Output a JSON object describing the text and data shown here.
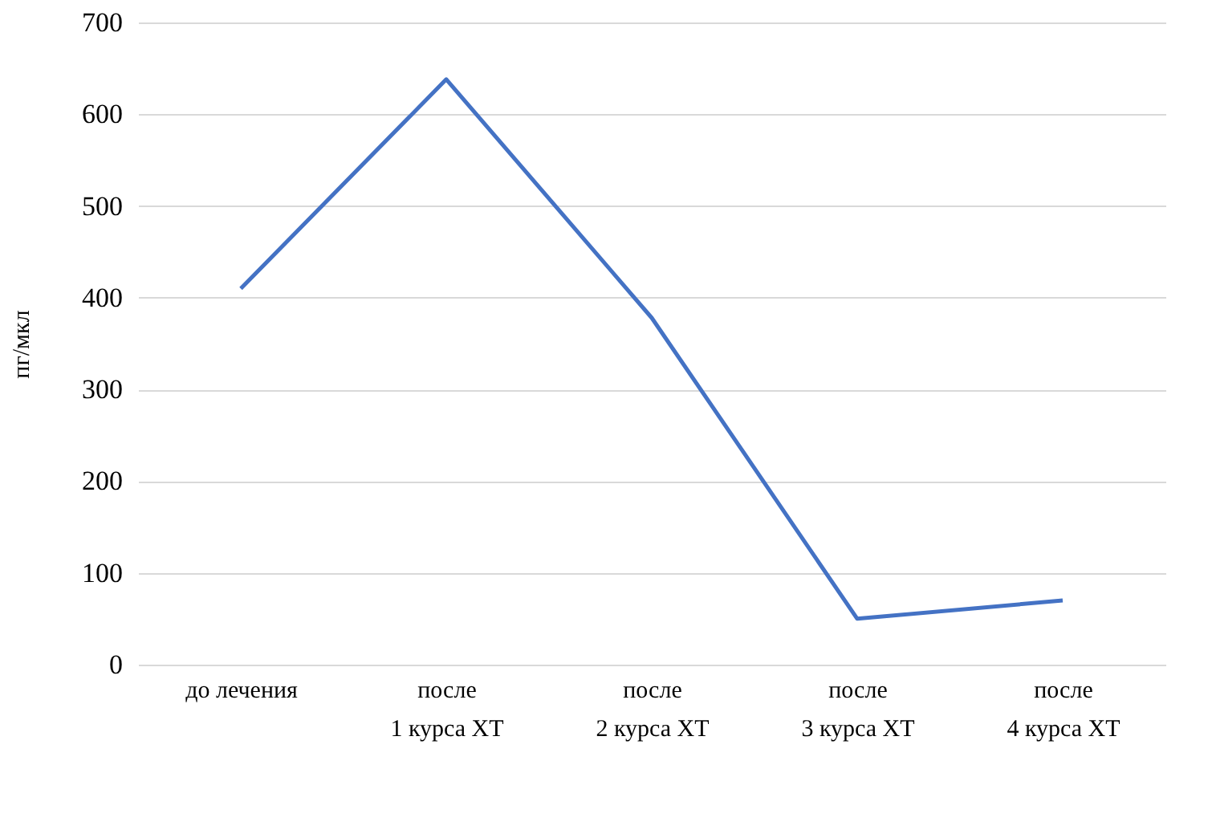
{
  "chart_data": {
    "type": "line",
    "ylabel": "пг/мкл",
    "categories": [
      "до лечения",
      "после\n1 курса ХТ",
      "после\n2 курса ХТ",
      "после\n3 курса ХТ",
      "после\n4 курса ХТ"
    ],
    "series": [
      {
        "color": "#4472c4",
        "values": [
          410,
          638,
          378,
          50,
          70
        ]
      }
    ],
    "ylim": [
      0,
      700
    ],
    "yticks": [
      0,
      100,
      200,
      300,
      400,
      500,
      600,
      700
    ],
    "grid": "y",
    "marker": "none",
    "line_style": "solid"
  }
}
